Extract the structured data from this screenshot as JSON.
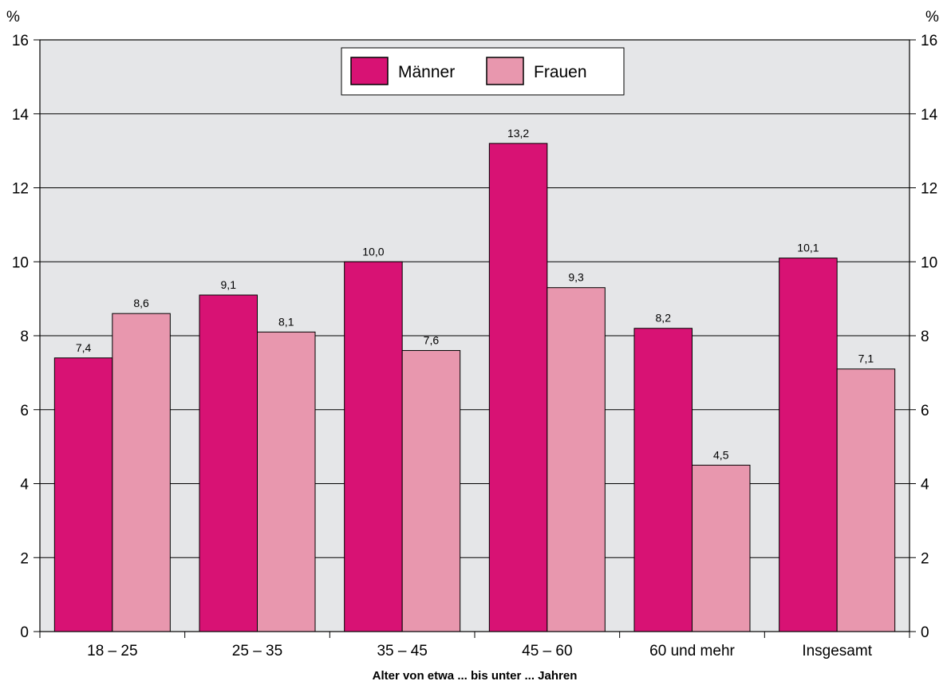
{
  "chart_data": {
    "type": "bar",
    "categories": [
      "18 – 25",
      "25 – 35",
      "35 – 45",
      "45 – 60",
      "60 und mehr",
      "Insgesamt"
    ],
    "series": [
      {
        "name": "Männer",
        "values": [
          7.4,
          9.1,
          10.0,
          13.2,
          8.2,
          10.1
        ],
        "labels": [
          "7,4",
          "9,1",
          "10,0",
          "13,2",
          "8,2",
          "10,1"
        ],
        "color": "#d81274"
      },
      {
        "name": "Frauen",
        "values": [
          8.6,
          8.1,
          7.6,
          9.3,
          4.5,
          7.1
        ],
        "labels": [
          "8,6",
          "8,1",
          "7,6",
          "9,3",
          "4,5",
          "7,1"
        ],
        "color": "#e897ae"
      }
    ],
    "xlabel": "Alter von etwa ... bis unter ... Jahren",
    "y_unit_left": "%",
    "y_unit_right": "%",
    "ylim": [
      0,
      16
    ],
    "yticks": [
      0,
      2,
      4,
      6,
      8,
      10,
      12,
      14,
      16
    ],
    "grid": true,
    "legend_position": "top-center",
    "plot_background": "#e5e6e8"
  }
}
